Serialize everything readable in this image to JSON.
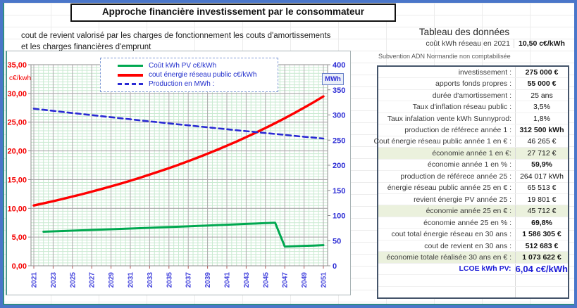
{
  "header": {
    "title": "Approche financière investissement par le consommateur",
    "subtitle_line1": "cout de revient valorisé  par les charges de  fonctionnement les couts d'amortissements",
    "subtitle_line2": "et les charges financières d'emprunt"
  },
  "chart_data": {
    "type": "line",
    "grid": true,
    "legend_position": "top-inside",
    "x_min": 2021,
    "x_max": 2051,
    "x_ticks": [
      "2021",
      "2023",
      "2025",
      "2027",
      "2029",
      "2031",
      "2033",
      "2035",
      "2037",
      "2039",
      "2041",
      "2043",
      "2045",
      "2047",
      "2049",
      "2051"
    ],
    "y_left": {
      "label": "c€/kwh",
      "min": 0,
      "max": 35,
      "ticks": [
        {
          "label": "35,00",
          "value": 35
        },
        {
          "label": "30,00",
          "value": 30
        },
        {
          "label": "25,00",
          "value": 25
        },
        {
          "label": "20,00",
          "value": 20
        },
        {
          "label": "15,00",
          "value": 15
        },
        {
          "label": "10,00",
          "value": 10
        },
        {
          "label": "5,00",
          "value": 5
        },
        {
          "label": "0,00",
          "value": 0
        }
      ]
    },
    "y_right": {
      "label": "MWh",
      "min": 0,
      "max": 400,
      "ticks": [
        {
          "label": "400",
          "value": 400
        },
        {
          "label": "350",
          "value": 350
        },
        {
          "label": "300",
          "value": 300
        },
        {
          "label": "250",
          "value": 250
        },
        {
          "label": "200",
          "value": 200
        },
        {
          "label": "150",
          "value": 150
        },
        {
          "label": "100",
          "value": 100
        },
        {
          "label": "50",
          "value": 50
        },
        {
          "label": "0",
          "value": 0
        }
      ]
    },
    "series": [
      {
        "name": "Coût kWh PV c€/kWh",
        "color": "#00a850",
        "axis": "left",
        "style": "solid",
        "width": 3,
        "x0": 2022,
        "values": [
          5.94,
          6.0,
          6.06,
          6.12,
          6.18,
          6.24,
          6.3,
          6.36,
          6.42,
          6.48,
          6.55,
          6.61,
          6.68,
          6.74,
          6.81,
          6.87,
          6.94,
          7.01,
          7.08,
          7.15,
          7.22,
          7.29,
          7.36,
          7.43,
          7.5,
          3.35,
          3.41,
          3.47,
          3.53,
          3.6
        ]
      },
      {
        "name": "cout énergie réseau public c€/kWh",
        "color": "#fe0000",
        "axis": "left",
        "style": "solid",
        "width": 3.4,
        "x0": 2021,
        "values": [
          10.5,
          10.87,
          11.25,
          11.64,
          12.05,
          12.47,
          12.91,
          13.36,
          13.83,
          14.31,
          14.81,
          15.33,
          15.87,
          16.42,
          17.0,
          17.59,
          18.21,
          18.85,
          19.51,
          20.19,
          20.9,
          21.63,
          22.39,
          23.17,
          23.98,
          24.82,
          25.69,
          26.59,
          27.52,
          28.48,
          29.48
        ]
      },
      {
        "name": "Production en MWh :",
        "color": "#2a2ad4",
        "axis": "right",
        "style": "dashed",
        "width": 2.6,
        "dash": "7 5",
        "x0": 2021,
        "values": [
          312.5,
          310.3,
          308.2,
          306.0,
          303.9,
          301.8,
          299.7,
          297.6,
          295.5,
          293.4,
          291.4,
          289.3,
          287.3,
          285.3,
          283.3,
          281.3,
          279.4,
          277.4,
          275.5,
          273.5,
          271.6,
          269.7,
          267.8,
          266.0,
          264.0,
          262.2,
          260.4,
          258.5,
          256.7,
          254.9,
          253.1
        ]
      }
    ]
  },
  "table": {
    "title": "Tableau des données",
    "header_row": {
      "label": "coût kWh réseau en 2021",
      "value": "10,50 c€/kWh"
    },
    "note": "Subvention ADN Normandie non comptabilisée",
    "rows": [
      {
        "label": "investissement :",
        "value": "275 000 €",
        "bold": true
      },
      {
        "label": "apports fonds propres :",
        "value": "55 000 €",
        "bold": true
      },
      {
        "label": "durée d'amortissement :",
        "value": "25 ans",
        "bold": false
      },
      {
        "label": "Taux d'inflation réseau public :",
        "value": "3,5%",
        "bold": false
      },
      {
        "label": "Taux infalation vente kWh Sunnyprod:",
        "value": "1,8%",
        "bold": false
      },
      {
        "label": "production de référece année 1 :",
        "value": "312 500 kWh",
        "bold": true
      },
      {
        "label": "Cout énergie réseau public année 1 en € :",
        "value": "46 265 €",
        "bold": false
      },
      {
        "label": "économie année 1 en €:",
        "value": "27 712 €",
        "bold": false,
        "highlight": true
      },
      {
        "label": "économie année 1 en % :",
        "value": "59,9%",
        "bold": true
      },
      {
        "label": "production de référece année 25 :",
        "value": "264 017 kWh",
        "bold": false
      },
      {
        "label": "énergie réseau public année 25 en € :",
        "value": "65 513 €",
        "bold": false
      },
      {
        "label": "revient énergie PV année 25 :",
        "value": "19 801 €",
        "bold": false
      },
      {
        "label": "économie année  25 en € :",
        "value": "45 712 €",
        "bold": false,
        "highlight": true
      },
      {
        "label": "économie année  25 en % :",
        "value": "69,8%",
        "bold": true
      },
      {
        "label": "cout total énergie réseau en 30 ans :",
        "value": "1 586 305 €",
        "bold": true
      },
      {
        "label": "cout de revient en 30 ans :",
        "value": "512 683 €",
        "bold": true
      },
      {
        "label": "économie totale réalisée 30 ans  en € :",
        "value": "1 073 622 €",
        "bold": true,
        "highlight": true
      },
      {
        "label": "LCOE kWh PV:",
        "value": "6,04 c€/kWh",
        "lcoe": true
      },
      {
        "label": "",
        "value": ""
      },
      {
        "label": "",
        "value": ""
      }
    ]
  }
}
